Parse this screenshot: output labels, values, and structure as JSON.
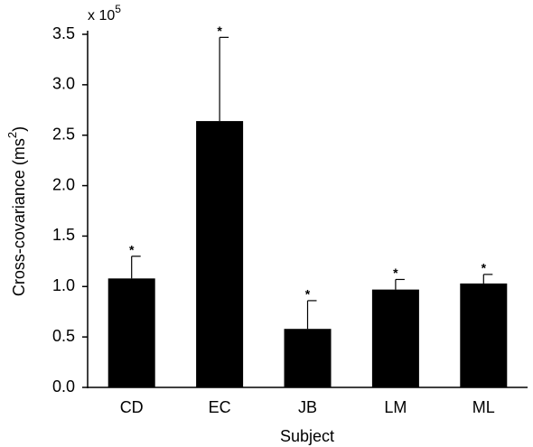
{
  "chart_data": {
    "type": "bar",
    "y_multiplier": {
      "base": "x 10",
      "exponent": "5"
    },
    "ylabel": [
      "Cross-covariance (ms",
      "2",
      ")"
    ],
    "xlabel": "Subject",
    "categories": [
      "CD",
      "EC",
      "JB",
      "LM",
      "ML"
    ],
    "values": [
      1.08,
      2.64,
      0.58,
      0.97,
      1.03
    ],
    "errors": [
      0.22,
      0.83,
      0.28,
      0.1,
      0.09
    ],
    "value_annotations": [
      "*",
      "*",
      "*",
      "*",
      "*"
    ],
    "color": "#000000",
    "ylim": [
      0,
      3.5
    ],
    "yticks": [
      {
        "value": 0,
        "label": "0.0"
      },
      0.5,
      {
        "value": 1,
        "label": "1.0"
      },
      1.5,
      {
        "value": 2,
        "label": "2.0"
      },
      2.5,
      {
        "value": 3,
        "label": "3.0"
      },
      3.5
    ]
  }
}
